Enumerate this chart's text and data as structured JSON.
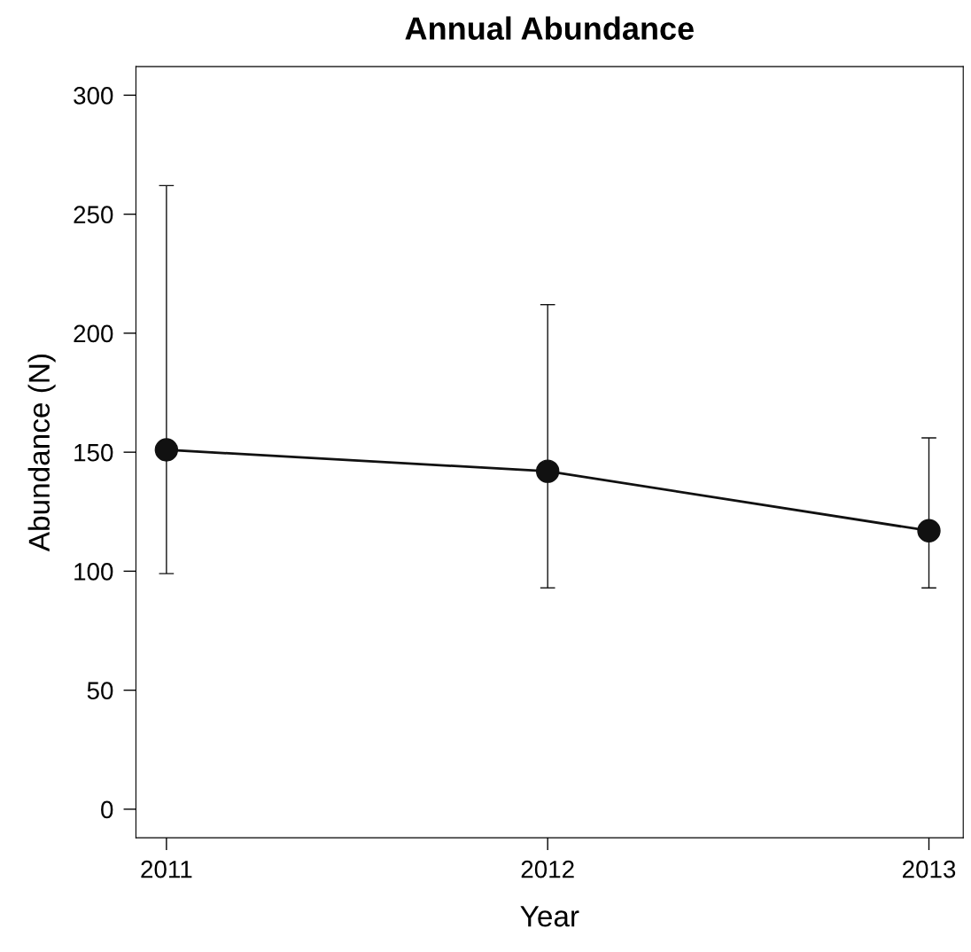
{
  "chart_data": {
    "type": "line",
    "title": "Annual Abundance",
    "xlabel": "Year",
    "ylabel": "Abundance (N)",
    "x": [
      2011,
      2012,
      2013
    ],
    "series": [
      {
        "color": "#111111",
        "values": [
          151,
          142,
          117
        ],
        "errors": [
          [
            99,
            262
          ],
          [
            93,
            212
          ],
          [
            93,
            156
          ]
        ]
      }
    ],
    "xlim": [
      2010.92,
      2013.09
    ],
    "xticks": [
      2011,
      2012,
      2013
    ],
    "ylim": [
      -12,
      312
    ],
    "yticks": [
      0,
      50,
      100,
      150,
      200,
      250,
      300
    ],
    "marker": "circle",
    "line_style": "solid",
    "grid": false,
    "legend": false
  }
}
